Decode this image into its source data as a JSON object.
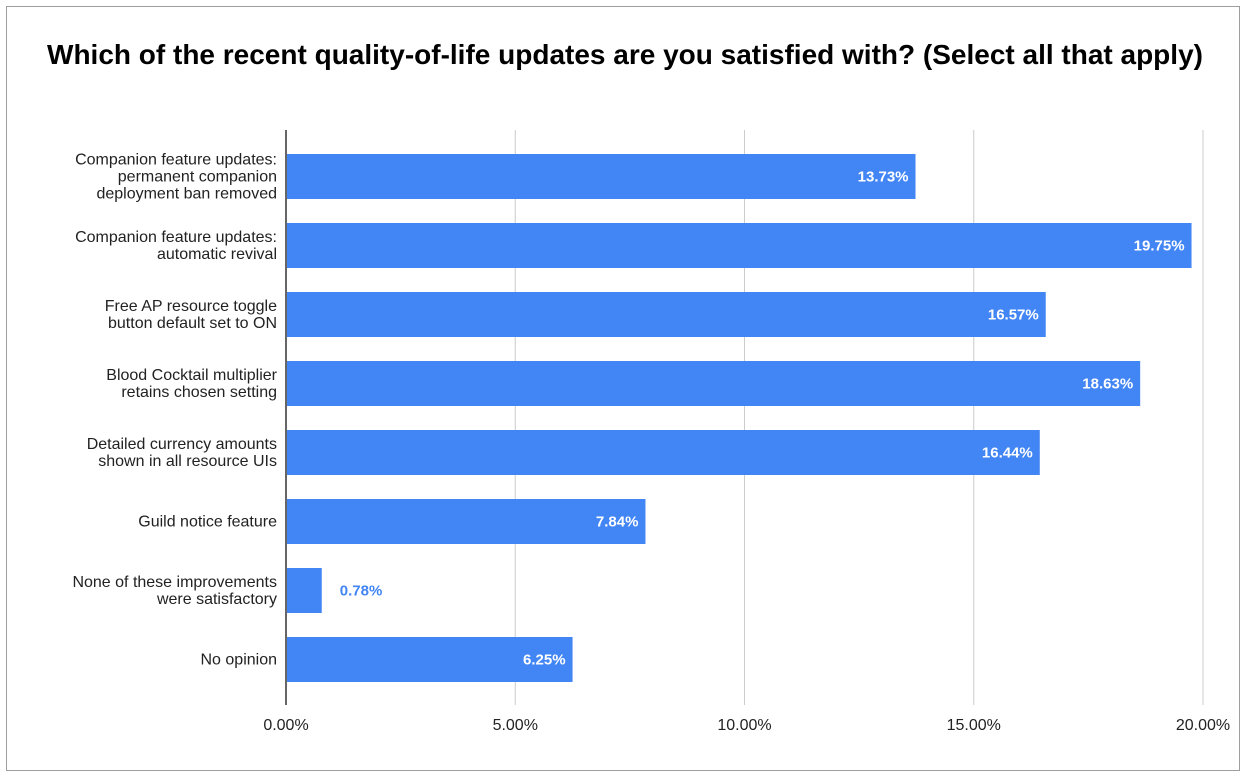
{
  "chart_data": {
    "type": "bar",
    "orientation": "horizontal",
    "title": "Which of the recent quality-of-life updates are you satisfied with? (Select all that apply)",
    "categories": [
      "Companion feature updates: permanent companion deployment ban removed",
      "Companion feature updates: automatic revival",
      "Free AP resource toggle button default set to ON",
      "Blood Cocktail multiplier retains chosen setting",
      "Detailed currency amounts shown in all resource UIs",
      "Guild notice feature",
      "None of these improvements were satisfactory",
      "No opinion"
    ],
    "category_lines": [
      [
        "Companion feature updates:",
        "permanent companion",
        "deployment ban removed"
      ],
      [
        "Companion feature updates:",
        "automatic revival"
      ],
      [
        "Free AP resource toggle",
        "button default set to ON"
      ],
      [
        "Blood Cocktail multiplier",
        "retains chosen setting"
      ],
      [
        "Detailed currency amounts",
        "shown in all resource UIs"
      ],
      [
        "Guild notice feature"
      ],
      [
        "None of these improvements",
        "were satisfactory"
      ],
      [
        "No opinion"
      ]
    ],
    "values": [
      13.73,
      19.75,
      16.57,
      18.63,
      16.44,
      7.84,
      0.78,
      6.25
    ],
    "data_labels": [
      "13.73%",
      "19.75%",
      "16.57%",
      "18.63%",
      "16.44%",
      "7.84%",
      "0.78%",
      "6.25%"
    ],
    "xlim": [
      0,
      20
    ],
    "xticks": [
      0,
      5,
      10,
      15,
      20
    ],
    "xtick_labels": [
      "0.00%",
      "5.00%",
      "10.00%",
      "15.00%",
      "20.00%"
    ],
    "grid": true,
    "legend": "none",
    "xlabel": "",
    "ylabel": ""
  },
  "colors": {
    "bar": "#4285f4",
    "grid": "#cccccc",
    "axis": "#333333",
    "label_inside": "#ffffff",
    "label_outside": "#4285f4"
  }
}
